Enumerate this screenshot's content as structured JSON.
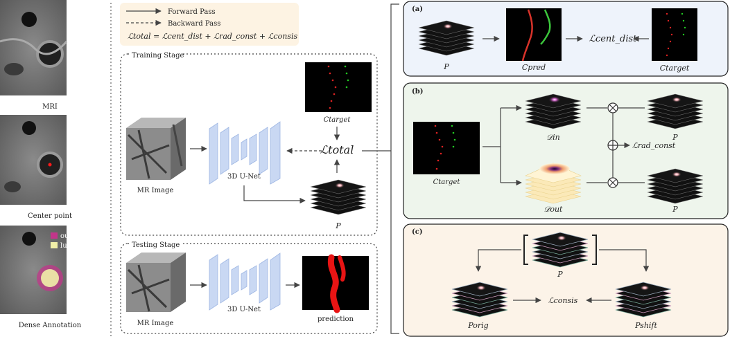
{
  "left_panel": {
    "mri_caption": "MRI",
    "center_caption": "Center point",
    "dense_caption": "Dense Annotation",
    "legend_outer": "outer wall",
    "legend_lumen": "lumen",
    "colors": {
      "outer_wall": "#c2358a",
      "lumen": "#f1efa8",
      "center_dot": "#ff1a1a"
    }
  },
  "legend": {
    "forward": "Forward Pass",
    "backward": "Backward Pass",
    "loss_total": "ℒtotal",
    "loss_cent": "ℒcent_dist",
    "loss_rad": "ℒrad_const",
    "loss_consis": "ℒconsis"
  },
  "training": {
    "title": "Training Stage",
    "mr_image": "MR Image",
    "unet": "3D U-Net",
    "c_target": "Ctarget",
    "loss": "ℒtotal",
    "p": "P"
  },
  "testing": {
    "title": "Testing Stage",
    "mr_image": "MR Image",
    "unet": "3D U-Net",
    "prediction": "prediction"
  },
  "panel_a": {
    "tag": "(a)",
    "p": "P",
    "c_pred": "Cpred",
    "loss": "ℒcent_dist",
    "c_target": "Ctarget",
    "bg": "#eef3fb"
  },
  "panel_b": {
    "tag": "(b)",
    "c_target": "Ctarget",
    "d_in": "𝒟in",
    "d_out": "𝒟out",
    "loss": "ℒrad_const",
    "p_top": "P",
    "p_bottom": "P",
    "bg": "#eef5ec"
  },
  "panel_c": {
    "tag": "(c)",
    "p": "P",
    "p_orig": "Porig",
    "p_shift": "Pshift",
    "loss": "ℒconsis",
    "bg": "#fcf3e8"
  }
}
